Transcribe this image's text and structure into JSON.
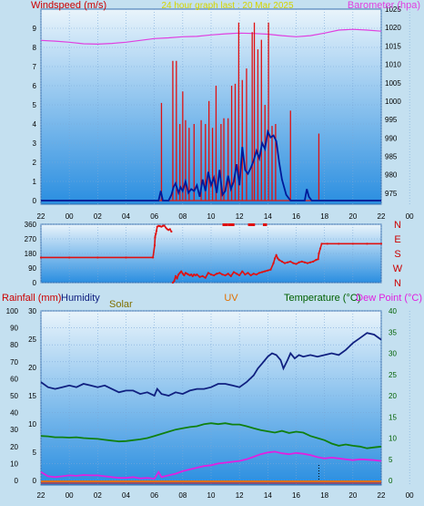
{
  "header": {
    "windspeed_label": "Windspeed (m/s)",
    "title": "24 hour graph last : 20 Mar 2025",
    "barometer_label": "Barometer (hpa)"
  },
  "bottom_header": {
    "rainfall_label": "Rainfall (mm)",
    "humidity_label": "Humidity",
    "solar_label": "Solar",
    "uv_label": "UV",
    "temperature_label": "Temperature (°C)",
    "dewpoint_label": "Dew Point (°C)"
  },
  "colors": {
    "background": "#c4e0f0",
    "plot_top": "#e9f4fb",
    "plot_bottom": "#2a8ee0",
    "frame": "#3a6fae",
    "header_text": "#cc0000",
    "title_text": "#d4d400",
    "barometer": "#e040e0",
    "gust": "#e01010",
    "wind_avg": "#001a99",
    "direction": "#e01010",
    "humidity": "#102080",
    "temperature": "#108010",
    "dewpoint": "#e020e0",
    "solar": "#807000",
    "uv": "#e07000",
    "temperature_axis": "#006000",
    "direction_letters": "#cc0000"
  },
  "chart_data": [
    {
      "id": "wind",
      "type": "line",
      "x_ticks": [
        "22",
        "00",
        "02",
        "04",
        "06",
        "08",
        "10",
        "12",
        "14",
        "16",
        "18",
        "20",
        "22",
        "00"
      ],
      "xlim_hours": [
        0,
        24
      ],
      "xlabel": "",
      "ylabel": "Windspeed (m/s)",
      "ylim": [
        0,
        10
      ],
      "y_ticks": [
        0,
        1,
        2,
        3,
        4,
        5,
        6,
        7,
        8,
        9
      ],
      "y2label": "Barometer (hpa)",
      "y2lim": [
        973,
        1025
      ],
      "y2_ticks": [
        975,
        980,
        985,
        990,
        995,
        1000,
        1005,
        1010,
        1015,
        1020,
        1025
      ],
      "grid": true,
      "series": [
        {
          "name": "Barometer (hpa)",
          "axis": "right",
          "style": "line",
          "x": [
            0,
            1,
            2,
            3,
            4,
            5,
            6,
            7,
            8,
            9,
            10,
            11,
            12,
            13,
            14,
            15,
            16,
            17,
            18,
            19,
            20,
            21,
            22,
            23,
            24
          ],
          "values": [
            1016.5,
            1016.3,
            1016,
            1015.6,
            1015.5,
            1015.7,
            1016,
            1016.5,
            1017,
            1017.2,
            1017.5,
            1017.6,
            1018,
            1018.3,
            1018.5,
            1018.4,
            1018.2,
            1017.8,
            1017.5,
            1017.8,
            1018.5,
            1019.3,
            1019.5,
            1019.3,
            1019
          ]
        },
        {
          "name": "Gust",
          "axis": "left",
          "style": "spikes",
          "x": [
            8.5,
            9.3,
            9.55,
            9.8,
            10.0,
            10.2,
            10.45,
            10.8,
            11.3,
            11.6,
            11.85,
            12.1,
            12.35,
            12.7,
            12.9,
            13.2,
            13.45,
            13.7,
            13.95,
            14.2,
            14.5,
            14.9,
            15.05,
            15.3,
            15.55,
            15.8,
            16.05,
            16.3,
            16.55,
            17.6,
            19.6
          ],
          "values": [
            5.1,
            7.3,
            7.3,
            4.0,
            5.7,
            4.2,
            3.8,
            4.0,
            4.2,
            4.0,
            5.2,
            3.8,
            6.0,
            4.0,
            4.3,
            4.3,
            6.0,
            6.1,
            9.3,
            6.3,
            6.9,
            8.8,
            9.3,
            7.9,
            8.4,
            5.0,
            9.3,
            3.9,
            4.0,
            4.7,
            3.5
          ]
        },
        {
          "name": "Wind average",
          "axis": "left",
          "style": "line",
          "x": [
            0,
            8.3,
            8.45,
            8.6,
            8.75,
            9.0,
            9.2,
            9.35,
            9.5,
            9.7,
            9.85,
            10.0,
            10.2,
            10.4,
            10.6,
            10.8,
            11.0,
            11.2,
            11.4,
            11.6,
            11.8,
            12.0,
            12.2,
            12.4,
            12.6,
            12.8,
            13.0,
            13.2,
            13.4,
            13.6,
            13.8,
            14.0,
            14.2,
            14.4,
            14.6,
            14.8,
            15.0,
            15.2,
            15.4,
            15.6,
            15.8,
            16.0,
            16.2,
            16.4,
            16.6,
            16.8,
            17.0,
            17.3,
            17.6,
            17.8,
            18.2,
            18.6,
            18.75,
            18.9,
            19.1,
            24
          ],
          "values": [
            0,
            0,
            0.5,
            0,
            0,
            0,
            0.3,
            0.7,
            0.9,
            0.4,
            0.7,
            0.5,
            1.0,
            0.4,
            0.6,
            0.5,
            0.8,
            0.2,
            1.1,
            0.5,
            1.5,
            0.8,
            1.2,
            0.4,
            1.6,
            0.3,
            0.5,
            1.3,
            0.6,
            1.0,
            1.9,
            0.8,
            2.8,
            1.6,
            1.4,
            1.7,
            2.1,
            2.6,
            2.2,
            3.0,
            2.7,
            3.6,
            3.3,
            3.4,
            3.1,
            2.0,
            1.1,
            0.3,
            0,
            0,
            0,
            0,
            0.6,
            0.2,
            0,
            0
          ]
        }
      ]
    },
    {
      "id": "direction",
      "type": "scatter",
      "xlim_hours": [
        0,
        24
      ],
      "ylabel": "",
      "ylim": [
        0,
        360
      ],
      "y_ticks": [
        0,
        90,
        180,
        270,
        360
      ],
      "compass_labels": [
        "N",
        "W",
        "S",
        "E",
        "N"
      ],
      "grid": true,
      "series": [
        {
          "name": "Wind direction",
          "x": [
            0,
            2,
            4,
            6,
            7.9,
            8.02,
            8.05,
            8.1,
            8.15,
            8.2,
            8.3,
            8.4,
            8.5,
            8.6,
            8.7,
            8.8,
            8.9,
            9.0,
            9.1,
            9.2,
            9.3,
            9.4,
            9.5,
            9.6,
            9.7,
            9.8,
            9.9,
            10.0,
            10.1,
            10.2,
            10.3,
            10.4,
            10.5,
            10.6,
            10.7,
            10.8,
            10.9,
            11.0,
            11.2,
            11.4,
            11.6,
            11.8,
            12.0,
            12.2,
            12.4,
            12.6,
            12.8,
            13.0,
            13.2,
            13.4,
            13.6,
            13.8,
            14.0,
            14.2,
            14.4,
            14.6,
            14.8,
            15.0,
            15.2,
            15.4,
            15.6,
            15.8,
            16.0,
            16.2,
            16.4,
            16.5,
            16.6,
            16.7,
            16.8,
            17.0,
            17.2,
            17.4,
            17.6,
            17.8,
            18.0,
            18.2,
            18.4,
            18.6,
            18.8,
            19.0,
            19.2,
            19.4,
            19.55,
            19.6,
            19.7,
            19.8,
            20.2,
            21,
            22,
            23,
            24
          ],
          "values": [
            155,
            155,
            155,
            155,
            155,
            230,
            280,
            300,
            320,
            345,
            350,
            348,
            345,
            350,
            352,
            340,
            330,
            325,
            330,
            315,
            0,
            10,
            40,
            25,
            50,
            60,
            70,
            55,
            45,
            60,
            55,
            50,
            45,
            50,
            40,
            50,
            45,
            50,
            35,
            40,
            30,
            60,
            50,
            45,
            55,
            60,
            50,
            45,
            55,
            40,
            65,
            55,
            45,
            70,
            50,
            60,
            45,
            55,
            50,
            60,
            65,
            70,
            75,
            80,
            120,
            150,
            170,
            150,
            140,
            130,
            120,
            125,
            130,
            120,
            115,
            125,
            130,
            125,
            120,
            125,
            130,
            140,
            145,
            180,
            210,
            240,
            240,
            240,
            240,
            240,
            240
          ]
        },
        {
          "name": "Direction at 360",
          "x": [
            12.9,
            13.0,
            13.1,
            13.3,
            13.4,
            13.55,
            14.7,
            14.8,
            14.9,
            15.0,
            15.75,
            15.85
          ],
          "values": [
            360,
            360,
            360,
            360,
            360,
            360,
            360,
            360,
            360,
            360,
            360,
            360
          ]
        }
      ]
    },
    {
      "id": "climate",
      "type": "line",
      "x_ticks": [
        "22",
        "00",
        "02",
        "04",
        "06",
        "08",
        "10",
        "12",
        "14",
        "16",
        "18",
        "20",
        "22",
        "00"
      ],
      "xlim_hours": [
        0,
        24
      ],
      "grid": true,
      "axes": {
        "rainfall_humidity": {
          "label": "Humidity",
          "ylim": [
            0,
            100
          ],
          "ticks": [
            0,
            10,
            20,
            30,
            40,
            50,
            60,
            70,
            80,
            90,
            100
          ]
        },
        "rainfall_mm": {
          "label": "Rainfall (mm)",
          "ylim": [
            0,
            30
          ],
          "ticks": [
            0,
            5,
            10,
            15,
            20,
            25,
            30
          ]
        },
        "temperature": {
          "label": "Temperature (°C)",
          "ylim": [
            0,
            40
          ],
          "ticks": [
            0,
            5,
            10,
            15,
            20,
            25,
            30,
            35,
            40
          ]
        }
      },
      "series": [
        {
          "name": "Humidity",
          "axis": "rainfall_humidity",
          "x": [
            0,
            0.5,
            1,
            1.5,
            2,
            2.5,
            3,
            3.5,
            4,
            4.5,
            5,
            5.5,
            6,
            6.5,
            7,
            7.5,
            8,
            8.2,
            8.5,
            9,
            9.5,
            10,
            10.5,
            11,
            11.5,
            12,
            12.5,
            13,
            13.5,
            14,
            14.5,
            15,
            15.3,
            15.6,
            16,
            16.3,
            16.6,
            16.9,
            17.1,
            17.4,
            17.6,
            17.9,
            18.2,
            18.5,
            19,
            19.5,
            20,
            20.5,
            21,
            21.5,
            22,
            22.5,
            23,
            23.5,
            24
          ],
          "values": [
            58,
            55,
            54,
            55,
            56,
            55,
            57,
            56,
            55,
            56,
            54,
            52,
            53,
            53,
            51,
            52,
            50,
            54,
            51,
            50,
            52,
            51,
            53,
            54,
            54,
            55,
            57,
            57,
            56,
            55,
            58,
            62,
            66,
            69,
            73,
            75,
            74,
            71,
            66,
            71,
            75,
            72,
            74,
            73,
            74,
            73,
            74,
            75,
            74,
            77,
            81,
            84,
            87,
            86,
            83
          ]
        },
        {
          "name": "Temperature (°C)",
          "axis": "temperature",
          "x": [
            0,
            0.5,
            1,
            1.5,
            2,
            2.5,
            3,
            3.5,
            4,
            4.5,
            5,
            5.5,
            6,
            6.5,
            7,
            7.5,
            8,
            8.5,
            9,
            9.5,
            10,
            10.5,
            11,
            11.5,
            12,
            12.5,
            13,
            13.5,
            14,
            14.5,
            15,
            15.5,
            16,
            16.5,
            17,
            17.5,
            18,
            18.5,
            19,
            19.5,
            20,
            20.5,
            21,
            21.5,
            22,
            22.5,
            23,
            23.5,
            24
          ],
          "values": [
            10.5,
            10.4,
            10.2,
            10.2,
            10.1,
            10.2,
            10.0,
            9.9,
            9.8,
            9.6,
            9.4,
            9.2,
            9.3,
            9.5,
            9.7,
            10.0,
            10.5,
            11.0,
            11.5,
            12.0,
            12.3,
            12.6,
            12.8,
            13.3,
            13.5,
            13.3,
            13.5,
            13.2,
            13.2,
            12.8,
            12.3,
            11.9,
            11.6,
            11.3,
            11.7,
            11.2,
            11.5,
            11.3,
            10.5,
            10.0,
            9.5,
            8.7,
            8.2,
            8.5,
            8.2,
            8.0,
            7.6,
            7.8,
            8.0
          ]
        },
        {
          "name": "Dew Point (°C)",
          "axis": "temperature",
          "x": [
            0,
            0.5,
            1,
            1.5,
            2,
            2.5,
            3,
            3.5,
            4,
            4.5,
            5,
            5.5,
            6,
            6.5,
            7,
            7.5,
            8,
            8.3,
            8.5,
            9,
            9.5,
            10,
            10.5,
            11,
            11.5,
            12,
            12.5,
            13,
            13.5,
            14,
            14.5,
            15,
            15.5,
            16,
            16.5,
            17,
            17.5,
            18,
            18.5,
            19,
            19.5,
            20,
            20.5,
            21,
            21.5,
            22,
            22.5,
            23,
            23.5,
            24
          ],
          "values": [
            2.0,
            1.0,
            0.8,
            1.0,
            1.2,
            1.1,
            1.3,
            1.2,
            1.2,
            1.0,
            0.8,
            0.6,
            0.6,
            0.8,
            0.5,
            0.6,
            0.4,
            2.0,
            0.8,
            1.2,
            1.6,
            2.2,
            2.6,
            3.0,
            3.4,
            3.6,
            4.0,
            4.2,
            4.4,
            4.6,
            5.0,
            5.6,
            6.2,
            6.6,
            6.8,
            6.4,
            6.2,
            6.5,
            6.3,
            6.0,
            5.5,
            5.2,
            5.4,
            5.2,
            5.0,
            4.8,
            5.0,
            4.9,
            4.8,
            4.6
          ]
        }
      ]
    }
  ]
}
